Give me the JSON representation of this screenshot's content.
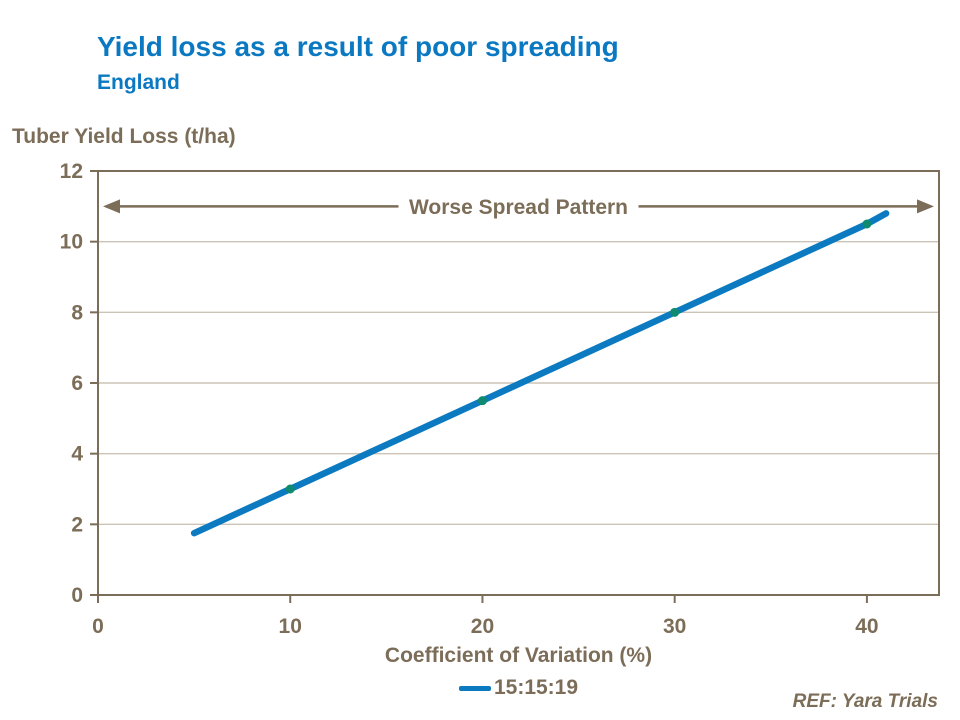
{
  "header": {
    "title": "Yield loss as a result of poor spreading",
    "subtitle": "England"
  },
  "colors": {
    "accent_blue": "#0B78C2",
    "line_blue": "#0C7AC0",
    "brown": "#7C6D58",
    "gridline": "#CBC3B6",
    "marker_teal": "#0E8A70",
    "background": "#FFFFFF"
  },
  "chart_data": {
    "type": "line",
    "title": "Yield loss as a result of poor spreading",
    "subtitle": "England",
    "ylabel": "Tuber Yield Loss (t/ha)",
    "xlabel": "Coefficient of Variation (%)",
    "annotation": "Worse Spread Pattern",
    "annotation_y": 11,
    "footnote": "REF: Yara Trials",
    "xlim": [
      0,
      43.75
    ],
    "ylim": [
      0,
      12
    ],
    "xticks": [
      0,
      10,
      20,
      30,
      40
    ],
    "yticks": [
      0,
      2,
      4,
      6,
      8,
      10,
      12
    ],
    "grid": "horizontal",
    "legend_position": "bottom-center",
    "series": [
      {
        "name": "15:15:19",
        "color": "#0C7AC0",
        "marker_color": "#0E8A70",
        "points": [
          [
            5,
            1.75
          ],
          [
            10,
            3.0
          ],
          [
            20,
            5.5
          ],
          [
            30,
            8.0
          ],
          [
            40,
            10.5
          ],
          [
            41,
            10.8
          ]
        ],
        "markers": [
          [
            10,
            3.0
          ],
          [
            20,
            5.5
          ],
          [
            30,
            8.0
          ],
          [
            40,
            10.5
          ]
        ]
      }
    ]
  }
}
